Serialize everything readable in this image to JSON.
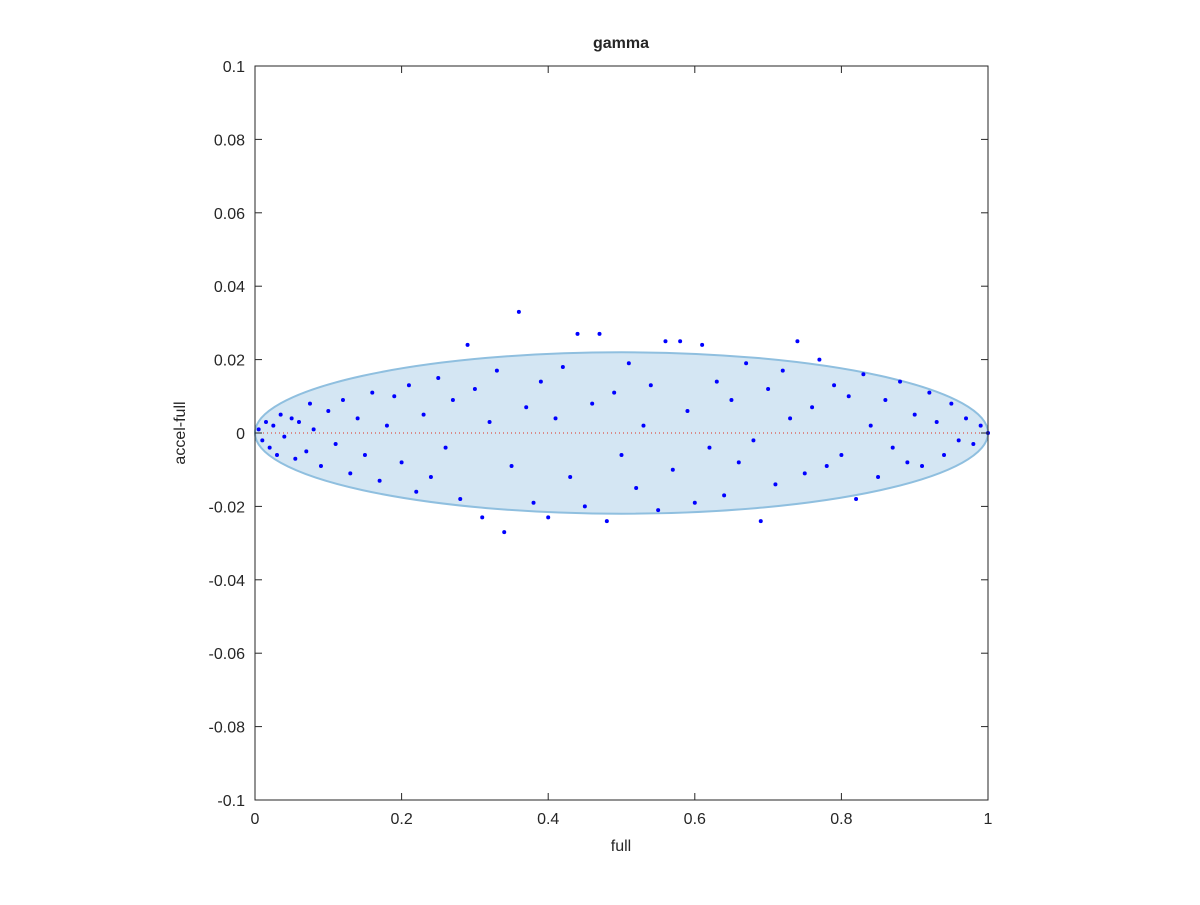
{
  "chart_data": {
    "type": "scatter",
    "title": "gamma",
    "xlabel": "full",
    "ylabel": "accel-full",
    "xlim": [
      0,
      1
    ],
    "ylim": [
      -0.1,
      0.1
    ],
    "xticks": [
      0,
      0.2,
      0.4,
      0.6,
      0.8,
      1
    ],
    "yticks": [
      -0.1,
      -0.08,
      -0.06,
      -0.04,
      -0.02,
      0,
      0.02,
      0.04,
      0.06,
      0.08,
      0.1
    ],
    "ellipse": {
      "center": [
        0.5,
        0
      ],
      "rx": 0.5,
      "ry": 0.022,
      "fill": "#d4e6f3",
      "stroke": "#8fbfdf"
    },
    "ref_line": {
      "x": [
        0,
        1
      ],
      "y": [
        0,
        0
      ],
      "color": "#e0301e"
    },
    "series": [
      {
        "color": "#0000ff",
        "x": [
          0.005,
          0.01,
          0.015,
          0.02,
          0.025,
          0.03,
          0.035,
          0.04,
          0.05,
          0.055,
          0.06,
          0.07,
          0.075,
          0.08,
          0.09,
          0.1,
          0.11,
          0.12,
          0.13,
          0.14,
          0.15,
          0.16,
          0.17,
          0.18,
          0.19,
          0.2,
          0.21,
          0.22,
          0.23,
          0.24,
          0.25,
          0.26,
          0.27,
          0.28,
          0.29,
          0.3,
          0.31,
          0.32,
          0.33,
          0.34,
          0.35,
          0.36,
          0.37,
          0.38,
          0.39,
          0.4,
          0.41,
          0.42,
          0.43,
          0.44,
          0.45,
          0.46,
          0.47,
          0.48,
          0.49,
          0.5,
          0.51,
          0.52,
          0.53,
          0.54,
          0.55,
          0.56,
          0.57,
          0.58,
          0.59,
          0.6,
          0.61,
          0.62,
          0.63,
          0.64,
          0.65,
          0.66,
          0.67,
          0.68,
          0.69,
          0.7,
          0.71,
          0.72,
          0.73,
          0.74,
          0.75,
          0.76,
          0.77,
          0.78,
          0.79,
          0.8,
          0.81,
          0.82,
          0.83,
          0.84,
          0.85,
          0.86,
          0.87,
          0.88,
          0.89,
          0.9,
          0.91,
          0.92,
          0.93,
          0.94,
          0.95,
          0.96,
          0.97,
          0.98,
          0.99,
          1.0
        ],
        "values": [
          0.001,
          -0.002,
          0.003,
          -0.004,
          0.002,
          -0.006,
          0.005,
          -0.001,
          0.004,
          -0.007,
          0.003,
          -0.005,
          0.008,
          0.001,
          -0.009,
          0.006,
          -0.003,
          0.009,
          -0.011,
          0.004,
          -0.006,
          0.011,
          -0.013,
          0.002,
          0.01,
          -0.008,
          0.013,
          -0.016,
          0.005,
          -0.012,
          0.015,
          -0.004,
          0.009,
          -0.018,
          0.024,
          0.012,
          -0.023,
          0.003,
          0.017,
          -0.027,
          -0.009,
          0.033,
          0.007,
          -0.019,
          0.014,
          -0.023,
          0.004,
          0.018,
          -0.012,
          0.027,
          -0.02,
          0.008,
          0.027,
          -0.024,
          0.011,
          -0.006,
          0.019,
          -0.015,
          0.002,
          0.013,
          -0.021,
          0.025,
          -0.01,
          0.025,
          0.006,
          -0.019,
          0.024,
          -0.004,
          0.014,
          -0.017,
          0.009,
          -0.008,
          0.019,
          -0.002,
          -0.024,
          0.012,
          -0.014,
          0.017,
          0.004,
          0.025,
          -0.011,
          0.007,
          0.02,
          -0.009,
          0.013,
          -0.006,
          0.01,
          -0.018,
          0.016,
          0.002,
          -0.012,
          0.009,
          -0.004,
          0.014,
          -0.008,
          0.005,
          -0.009,
          0.011,
          0.003,
          -0.006,
          0.008,
          -0.002,
          0.004,
          -0.003,
          0.002,
          0.0
        ]
      }
    ]
  }
}
